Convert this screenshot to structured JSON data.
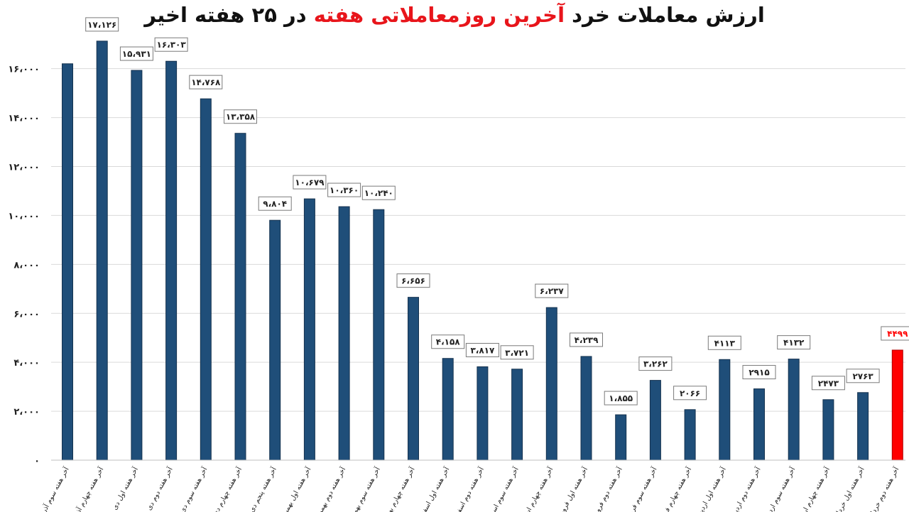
{
  "chart_data": {
    "type": "bar",
    "title": {
      "part1": "ارزش معاملات خرد ",
      "accent1": "آخرین روزمعاملاتی",
      "part2": " ",
      "accent2": "هفته",
      "part3": " در ۲۵ هفته اخیر"
    },
    "ylim": [
      0,
      17500
    ],
    "grid": true,
    "y_ticks": [
      {
        "value": 0,
        "label": "۰"
      },
      {
        "value": 2000,
        "label": "۲،۰۰۰"
      },
      {
        "value": 4000,
        "label": "۴،۰۰۰"
      },
      {
        "value": 6000,
        "label": "۶،۰۰۰"
      },
      {
        "value": 8000,
        "label": "۸،۰۰۰"
      },
      {
        "value": 10000,
        "label": "۱۰،۰۰۰"
      },
      {
        "value": 12000,
        "label": "۱۲،۰۰۰"
      },
      {
        "value": 14000,
        "label": "۱۴،۰۰۰"
      },
      {
        "value": 16000,
        "label": "۱۶،۰۰۰"
      }
    ],
    "categories": [
      "آخر هفته سوم آذر",
      "آخر هفته چهارم آذر",
      "آخر هفته اول دی",
      "آخر هفته دوم دی",
      "آخر هفته سوم دی",
      "آخر هفته چهارم دی",
      "آخر هفته پنجم دی",
      "آخر هفته اول بهمن",
      "آخر هفته دوم بهمن",
      "آخر هفته سوم بهمن",
      "آخر هفته چهارم بهمن",
      "آخر هفته اول اسفند",
      "آخر هفته دوم اسفند",
      "آخر هفته سوم اسفند",
      "آخر هفته چهارم اسفند",
      "آخر هفته اول فروردین",
      "آخر هفته دوم فروردین",
      "آخر هفته سوم فروردین",
      "آخر هفته چهارم فروردین",
      "آخر هفته اول اردیبهشت",
      "آخر هفته دوم اردیبهشت",
      "آخر هفته سوم اردیبهشت",
      "آخر هفته چهارم اردیبهشت",
      "آخر هفته اول خرداد",
      "آخر هفته دوم خرداد"
    ],
    "values": [
      16200,
      17126,
      15931,
      16303,
      14768,
      13358,
      9804,
      10679,
      10360,
      10240,
      6656,
      4158,
      3817,
      3721,
      6237,
      4239,
      1855,
      3262,
      2066,
      4113,
      2915,
      4132,
      2473,
      2763,
      4499
    ],
    "data_labels": [
      "",
      "۱۷،۱۲۶",
      "۱۵،۹۳۱",
      "۱۶،۳۰۳",
      "۱۴،۷۶۸",
      "۱۳،۳۵۸",
      "۹،۸۰۴",
      "۱۰،۶۷۹",
      "۱۰،۳۶۰",
      "۱۰،۲۴۰",
      "۶،۶۵۶",
      "۴،۱۵۸",
      "۳،۸۱۷",
      "۳،۷۲۱",
      "۶،۲۳۷",
      "۴،۲۳۹",
      "۱،۸۵۵",
      "۳،۲۶۲",
      "۲۰۶۶",
      "۴۱۱۳",
      "۲۹۱۵",
      "۴۱۳۲",
      "۲۴۷۳",
      "۲۷۶۳",
      "۴۴۹۹"
    ],
    "bar_color": "#1f4e79",
    "highlight_color": "#ff0000",
    "highlight_index": 24
  }
}
